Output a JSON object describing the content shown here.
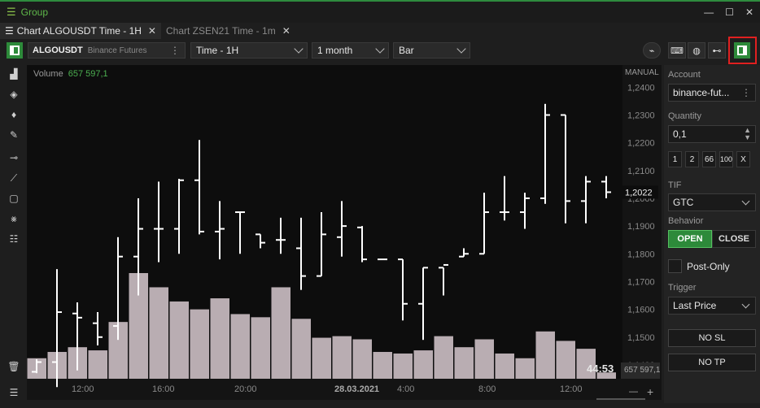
{
  "window": {
    "title": "Group"
  },
  "tabs": [
    {
      "label": "Chart ALGOUSDT Time - 1H",
      "active": true
    },
    {
      "label": "Chart ZSEN21 Time - 1m",
      "active": false
    }
  ],
  "toolbar": {
    "symbol": "ALGOUSDT",
    "exchange": "Binance Futures",
    "timeframe": "Time - 1H",
    "range": "1 month",
    "chart_type": "Bar"
  },
  "chart": {
    "volume_label": "Volume",
    "volume_value": "657 597,1",
    "scale_mode": "MANUAL",
    "current_price": "1,2022",
    "countdown": "44:53",
    "last_volume": "657 597,1",
    "price_ticks": [
      "1,2400",
      "1,2300",
      "1,2200",
      "1,2100",
      "1,2000",
      "1,1900",
      "1,1800",
      "1,1700",
      "1,1600",
      "1,1500",
      "1,1400"
    ],
    "time_ticks": [
      "12:00",
      "16:00",
      "20:00",
      "28.03.2021",
      "4:00",
      "8:00",
      "12:00"
    ]
  },
  "chart_data": {
    "type": "bar",
    "ylim": [
      1.135,
      1.248
    ],
    "price_ticks": [
      1.24,
      1.23,
      1.22,
      1.21,
      1.2,
      1.19,
      1.18,
      1.17,
      1.16,
      1.15,
      1.14
    ],
    "ohlc": [
      [
        1.1375,
        1.142,
        1.137,
        1.141
      ],
      [
        1.141,
        1.1745,
        1.132,
        1.159
      ],
      [
        1.1585,
        1.1625,
        1.138,
        1.157
      ],
      [
        1.155,
        1.159,
        1.147,
        1.15
      ],
      [
        1.154,
        1.186,
        1.149,
        1.179
      ],
      [
        1.179,
        1.2,
        1.165,
        1.189
      ],
      [
        1.189,
        1.206,
        1.177,
        1.189
      ],
      [
        1.189,
        1.207,
        1.18,
        1.2065
      ],
      [
        1.2065,
        1.221,
        1.187,
        1.188
      ],
      [
        1.188,
        1.199,
        1.178,
        1.189
      ],
      [
        1.195,
        1.195,
        1.18,
        1.195
      ],
      [
        1.187,
        1.187,
        1.182,
        1.184
      ],
      [
        1.185,
        1.193,
        1.18,
        1.185
      ],
      [
        1.182,
        1.193,
        1.167,
        1.172
      ],
      [
        1.172,
        1.195,
        1.172,
        1.187
      ],
      [
        1.186,
        1.199,
        1.179,
        1.19
      ],
      [
        1.1895,
        1.19,
        1.177,
        1.178
      ],
      [
        1.178,
        1.178,
        1.178,
        1.178
      ],
      [
        1.178,
        1.178,
        1.156,
        1.162
      ],
      [
        1.162,
        1.175,
        1.149,
        1.175
      ],
      [
        1.175,
        1.175,
        1.165,
        1.176
      ],
      [
        1.179,
        1.182,
        1.179,
        1.18
      ],
      [
        1.18,
        1.202,
        1.18,
        1.195
      ],
      [
        1.195,
        1.208,
        1.192,
        1.195
      ],
      [
        1.195,
        1.202,
        1.189,
        1.2
      ],
      [
        1.2,
        1.234,
        1.198,
        1.23
      ],
      [
        1.23,
        1.23,
        1.191,
        1.199
      ],
      [
        1.199,
        1.208,
        1.191,
        1.206
      ],
      [
        1.206,
        1.208,
        1.2,
        1.2022
      ]
    ],
    "volumes": [
      1300,
      1700,
      2000,
      1800,
      3600,
      6700,
      5800,
      4900,
      4400,
      5100,
      4100,
      3900,
      5800,
      3800,
      2600,
      2700,
      2500,
      1700,
      1600,
      1800,
      2700,
      2000,
      2500,
      1600,
      1300,
      3000,
      2400,
      1900,
      400
    ]
  },
  "right_panel": {
    "account_label": "Account",
    "account": "binance-fut...",
    "quantity_label": "Quantity",
    "quantity": "0,1",
    "qty_buttons": [
      "1",
      "2",
      "66",
      "100",
      "X"
    ],
    "tif_label": "TIF",
    "tif": "GTC",
    "behavior_label": "Behavior",
    "open": "OPEN",
    "close": "CLOSE",
    "post_only": "Post-Only",
    "trigger_label": "Trigger",
    "trigger": "Last Price",
    "no_sl": "NO SL",
    "no_tp": "NO TP"
  }
}
